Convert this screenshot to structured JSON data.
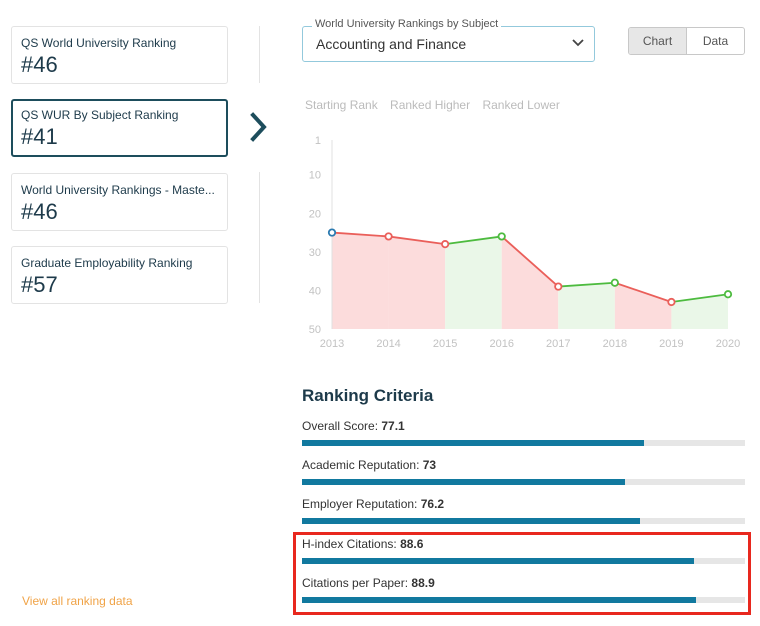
{
  "rankings": [
    {
      "label": "QS World University Ranking",
      "value": "#46"
    },
    {
      "label": "QS WUR By Subject Ranking",
      "value": "#41"
    },
    {
      "label": "World University Rankings - Maste...",
      "value": "#46"
    },
    {
      "label": "Graduate Employability Ranking",
      "value": "#57"
    }
  ],
  "subject_select": {
    "legend": "World University Rankings by Subject",
    "value": "Accounting and Finance"
  },
  "view_toggle": {
    "chart_label": "Chart",
    "data_label": "Data"
  },
  "chart_legend": {
    "starting": "Starting Rank",
    "higher": "Ranked Higher",
    "lower": "Ranked Lower"
  },
  "chart_data": {
    "type": "line",
    "x": [
      "2013",
      "2014",
      "2015",
      "2016",
      "2017",
      "2018",
      "2019",
      "2020"
    ],
    "values": [
      25,
      26,
      28,
      26,
      39,
      38,
      43,
      41
    ],
    "y_ticks": [
      1,
      10,
      20,
      30,
      40,
      50
    ],
    "ylim": [
      1,
      50
    ],
    "y_inverted": true,
    "colors": {
      "higher": "#4dbb3f",
      "lower": "#ea5f5a",
      "start": "#2b7ab0",
      "higher_fill": "#eaf7e8",
      "lower_fill": "#fcdcdc"
    }
  },
  "criteria": {
    "title": "Ranking Criteria",
    "items": [
      {
        "label": "Overall Score:",
        "score": "77.1",
        "value": 77.1
      },
      {
        "label": "Academic Reputation:",
        "score": "73",
        "value": 73
      },
      {
        "label": "Employer Reputation:",
        "score": "76.2",
        "value": 76.2
      },
      {
        "label": "H-index Citations:",
        "score": "88.6",
        "value": 88.6
      },
      {
        "label": "Citations per Paper:",
        "score": "88.9",
        "value": 88.9
      }
    ]
  },
  "view_all": "View all ranking data",
  "colors": {
    "accent_bar": "#11799f",
    "highlight": "#e8281e",
    "link": "#f0a347"
  }
}
